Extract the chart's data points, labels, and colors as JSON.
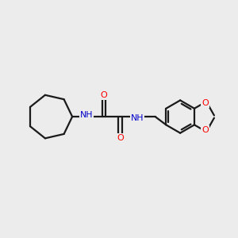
{
  "background_color": "#ececec",
  "bond_color": "#1a1a1a",
  "nitrogen_color": "#0000cc",
  "oxygen_color": "#ff0000",
  "line_width": 1.6,
  "figsize": [
    3.0,
    3.0
  ],
  "dpi": 100,
  "xlim": [
    0,
    10
  ],
  "ylim": [
    0,
    10
  ]
}
